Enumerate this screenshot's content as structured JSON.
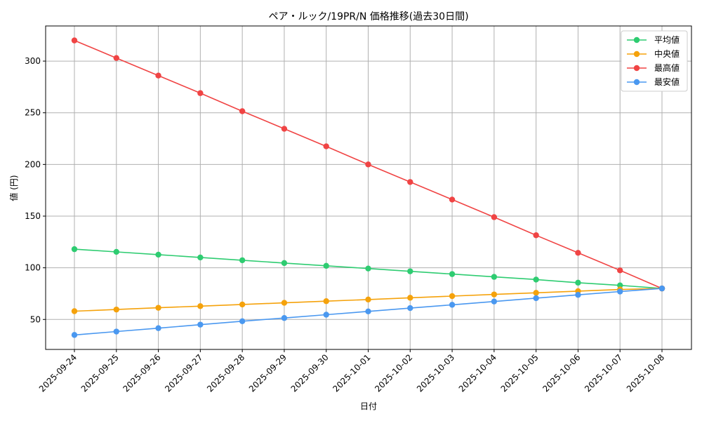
{
  "chart_data": {
    "type": "line",
    "title": "ペア・ルック/19PR/N 価格推移(過去30日間)",
    "xlabel": "日付",
    "ylabel": "値 (円)",
    "ylim": [
      21,
      334
    ],
    "yticks": [
      50,
      100,
      150,
      200,
      250,
      300
    ],
    "grid": true,
    "legend_position": "top-right",
    "categories": [
      "2025-09-24",
      "2025-09-25",
      "2025-09-26",
      "2025-09-27",
      "2025-09-28",
      "2025-09-29",
      "2025-09-30",
      "2025-10-01",
      "2025-10-02",
      "2025-10-03",
      "2025-10-04",
      "2025-10-05",
      "2025-10-06",
      "2025-10-07",
      "2025-10-08"
    ],
    "series": [
      {
        "name": "平均値",
        "color": "#2ecc71",
        "values": [
          118,
          115.4,
          112.7,
          110,
          107.3,
          104.6,
          101.9,
          99.3,
          96.6,
          93.9,
          91.2,
          88.6,
          85.6,
          83,
          80
        ]
      },
      {
        "name": "中央値",
        "color": "#f5a20b",
        "values": [
          58,
          59.6,
          61.3,
          62.9,
          64.5,
          66.1,
          67.7,
          69.3,
          71,
          72.6,
          74.2,
          75.8,
          77.4,
          79,
          80
        ]
      },
      {
        "name": "最高値",
        "color": "#f04444",
        "values": [
          320,
          303,
          286,
          269,
          251.5,
          234.5,
          217.5,
          200,
          183,
          166,
          149,
          131.5,
          114.5,
          97.5,
          80
        ]
      },
      {
        "name": "最安値",
        "color": "#4a98f0",
        "values": [
          35,
          38.3,
          41.6,
          45,
          48.3,
          51.4,
          54.6,
          57.8,
          61,
          64.2,
          67.4,
          70.6,
          73.8,
          77,
          80
        ]
      }
    ]
  }
}
